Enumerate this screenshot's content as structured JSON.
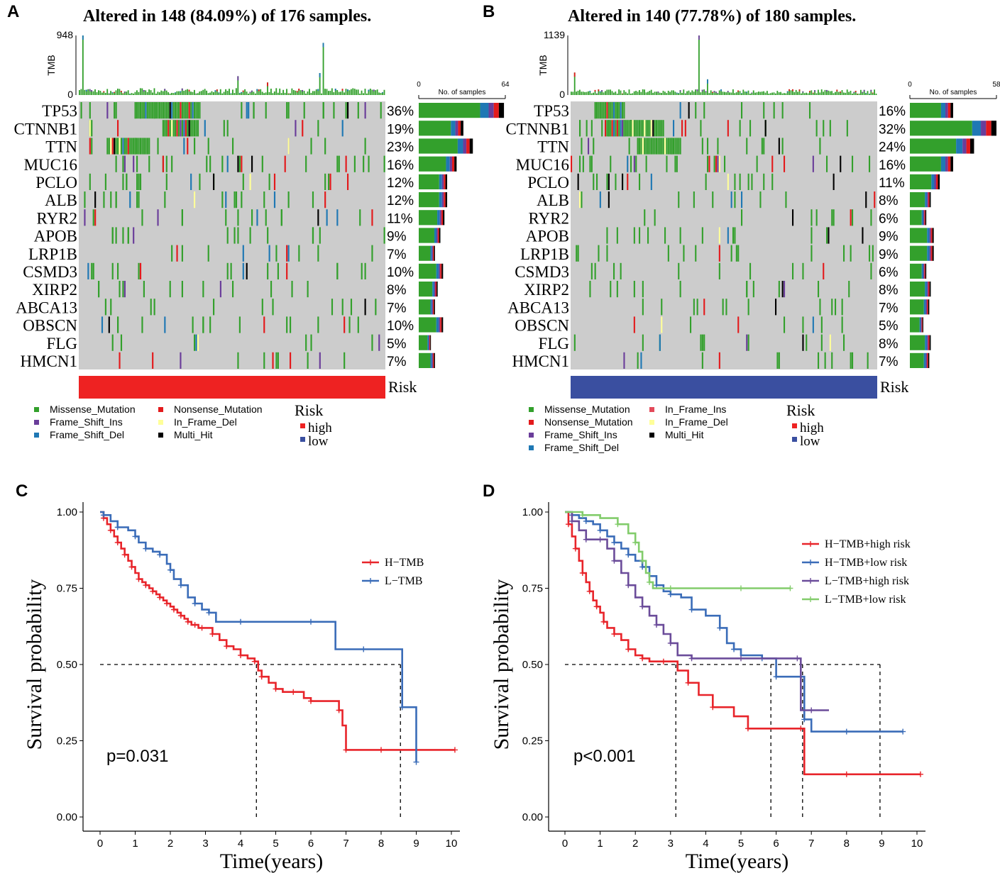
{
  "colors": {
    "Missense_Mutation": "#33a02c",
    "Nonsense_Mutation": "#e31a1c",
    "Frame_Shift_Ins": "#6a3d9a",
    "Frame_Shift_Del": "#1f78b4",
    "In_Frame_Del": "#ffff99",
    "In_Frame_Ins": "#e34a5a",
    "Multi_Hit": "#000000",
    "background": "#cccccc",
    "risk_high": "#ee2222",
    "risk_low": "#3a4fa0"
  },
  "oncoplots": [
    {
      "letter": "A",
      "title": "Altered in 148 (84.09%) of 176 samples.",
      "tmb_label": "TMB",
      "tmb_max": "948",
      "tmb_zero": "0",
      "tmb_max_value": 948,
      "n_samples": 176,
      "bar_axis_min": "0",
      "bar_axis_max": "64",
      "bar_axis_max_value": 64,
      "bar_axis_title": "No. of samples",
      "risk_label": "Risk",
      "risk_group": "high",
      "genes": [
        {
          "name": "TP53",
          "pct": "36%",
          "value": 36
        },
        {
          "name": "CTNNB1",
          "pct": "19%",
          "value": 19
        },
        {
          "name": "TTN",
          "pct": "23%",
          "value": 23
        },
        {
          "name": "MUC16",
          "pct": "16%",
          "value": 16
        },
        {
          "name": "PCLO",
          "pct": "12%",
          "value": 12
        },
        {
          "name": "ALB",
          "pct": "12%",
          "value": 12
        },
        {
          "name": "RYR2",
          "pct": "11%",
          "value": 11
        },
        {
          "name": "APOB",
          "pct": "9%",
          "value": 9
        },
        {
          "name": "LRP1B",
          "pct": "7%",
          "value": 7
        },
        {
          "name": "CSMD3",
          "pct": "10%",
          "value": 10
        },
        {
          "name": "XIRP2",
          "pct": "8%",
          "value": 8
        },
        {
          "name": "ABCA13",
          "pct": "7%",
          "value": 7
        },
        {
          "name": "OBSCN",
          "pct": "10%",
          "value": 10
        },
        {
          "name": "FLG",
          "pct": "5%",
          "value": 5
        },
        {
          "name": "HMCN1",
          "pct": "7%",
          "value": 7
        }
      ],
      "legend": [
        "Missense_Mutation",
        "Nonsense_Mutation",
        "Frame_Shift_Ins",
        "In_Frame_Del",
        "Frame_Shift_Del",
        "Multi_Hit"
      ],
      "risk_legend_title": "Risk",
      "risk_legend": [
        "high",
        "low"
      ]
    },
    {
      "letter": "B",
      "title": "Altered in 140 (77.78%) of 180 samples.",
      "tmb_label": "TMB",
      "tmb_max": "1139",
      "tmb_zero": "0",
      "tmb_max_value": 1139,
      "n_samples": 180,
      "bar_axis_min": "0",
      "bar_axis_max": "58",
      "bar_axis_max_value": 58,
      "bar_axis_title": "No. of samples",
      "risk_label": "Risk",
      "risk_group": "low",
      "genes": [
        {
          "name": "TP53",
          "pct": "16%",
          "value": 16
        },
        {
          "name": "CTNNB1",
          "pct": "32%",
          "value": 32
        },
        {
          "name": "TTN",
          "pct": "24%",
          "value": 24
        },
        {
          "name": "MUC16",
          "pct": "16%",
          "value": 16
        },
        {
          "name": "PCLO",
          "pct": "11%",
          "value": 11
        },
        {
          "name": "ALB",
          "pct": "8%",
          "value": 8
        },
        {
          "name": "RYR2",
          "pct": "6%",
          "value": 6
        },
        {
          "name": "APOB",
          "pct": "9%",
          "value": 9
        },
        {
          "name": "LRP1B",
          "pct": "9%",
          "value": 9
        },
        {
          "name": "CSMD3",
          "pct": "6%",
          "value": 6
        },
        {
          "name": "XIRP2",
          "pct": "8%",
          "value": 8
        },
        {
          "name": "ABCA13",
          "pct": "7%",
          "value": 7
        },
        {
          "name": "OBSCN",
          "pct": "5%",
          "value": 5
        },
        {
          "name": "FLG",
          "pct": "8%",
          "value": 8
        },
        {
          "name": "HMCN1",
          "pct": "7%",
          "value": 7
        }
      ],
      "legend": [
        "Missense_Mutation",
        "In_Frame_Ins",
        "Nonsense_Mutation",
        "In_Frame_Del",
        "Frame_Shift_Ins",
        "Multi_Hit",
        "Frame_Shift_Del"
      ],
      "risk_legend_title": "Risk",
      "risk_legend": [
        "high",
        "low"
      ]
    }
  ],
  "chart_data": [
    {
      "type": "line",
      "letter": "C",
      "title": "",
      "xlabel": "Time(years)",
      "ylabel": "Survival probability",
      "xlim": [
        0,
        10
      ],
      "ylim": [
        0,
        1
      ],
      "xticks": [
        "0",
        "1",
        "2",
        "3",
        "4",
        "5",
        "6",
        "7",
        "8",
        "9",
        "10"
      ],
      "yticks": [
        "0.00",
        "0.25",
        "0.50",
        "0.75",
        "1.00"
      ],
      "pvalue": "p=0.031",
      "median_line": 0.5,
      "medians": [
        4.45,
        8.55
      ],
      "series": [
        {
          "name": "H−TMB",
          "color": "#e8242a",
          "x": [
            0,
            0.1,
            0.2,
            0.3,
            0.4,
            0.5,
            0.6,
            0.7,
            0.8,
            0.9,
            1.0,
            1.1,
            1.2,
            1.3,
            1.4,
            1.5,
            1.6,
            1.7,
            1.8,
            1.9,
            2.0,
            2.1,
            2.2,
            2.3,
            2.4,
            2.5,
            2.6,
            2.7,
            2.8,
            2.9,
            3.0,
            3.2,
            3.4,
            3.6,
            3.8,
            4.0,
            4.2,
            4.4,
            4.5,
            4.6,
            4.8,
            5.0,
            5.2,
            5.5,
            5.8,
            6.0,
            6.4,
            6.8,
            6.9,
            7.0,
            7.5,
            8.0,
            9.0,
            10.1
          ],
          "y": [
            1.0,
            0.98,
            0.96,
            0.94,
            0.92,
            0.9,
            0.88,
            0.86,
            0.84,
            0.82,
            0.8,
            0.78,
            0.77,
            0.76,
            0.75,
            0.74,
            0.73,
            0.72,
            0.71,
            0.7,
            0.69,
            0.68,
            0.67,
            0.66,
            0.65,
            0.64,
            0.63,
            0.63,
            0.62,
            0.62,
            0.62,
            0.6,
            0.58,
            0.56,
            0.55,
            0.53,
            0.52,
            0.51,
            0.48,
            0.46,
            0.44,
            0.42,
            0.41,
            0.41,
            0.39,
            0.38,
            0.38,
            0.35,
            0.3,
            0.22,
            0.22,
            0.22,
            0.22,
            0.22
          ]
        },
        {
          "name": "L−TMB",
          "color": "#3a6cb8",
          "x": [
            0,
            0.1,
            0.3,
            0.5,
            0.8,
            1.0,
            1.1,
            1.3,
            1.5,
            1.7,
            1.9,
            2.0,
            2.1,
            2.3,
            2.5,
            2.7,
            2.9,
            3.1,
            3.3,
            4.0,
            5.0,
            6.0,
            6.7,
            7.5,
            8.5,
            8.6,
            8.9,
            9.0
          ],
          "y": [
            1.0,
            0.99,
            0.97,
            0.95,
            0.94,
            0.92,
            0.9,
            0.88,
            0.87,
            0.86,
            0.83,
            0.81,
            0.78,
            0.76,
            0.72,
            0.7,
            0.68,
            0.67,
            0.64,
            0.64,
            0.64,
            0.64,
            0.55,
            0.55,
            0.55,
            0.36,
            0.36,
            0.18
          ]
        }
      ]
    },
    {
      "type": "line",
      "letter": "D",
      "title": "",
      "xlabel": "Time(years)",
      "ylabel": "Survival probability",
      "xlim": [
        0,
        10
      ],
      "ylim": [
        0,
        1
      ],
      "xticks": [
        "0",
        "1",
        "2",
        "3",
        "4",
        "5",
        "6",
        "7",
        "8",
        "9",
        "10"
      ],
      "yticks": [
        "0.00",
        "0.25",
        "0.50",
        "0.75",
        "1.00"
      ],
      "pvalue": "p<0.001",
      "median_line": 0.5,
      "medians": [
        3.15,
        5.85,
        6.75,
        8.95
      ],
      "series": [
        {
          "name": "H−TMB+high risk",
          "color": "#e8242a",
          "x": [
            0,
            0.1,
            0.2,
            0.3,
            0.4,
            0.5,
            0.6,
            0.7,
            0.8,
            0.9,
            1.0,
            1.1,
            1.2,
            1.4,
            1.6,
            1.8,
            2.0,
            2.2,
            2.4,
            2.8,
            3.2,
            3.5,
            3.8,
            4.2,
            4.8,
            5.2,
            6.0,
            6.7,
            6.8,
            8.0,
            9.0,
            10.1
          ],
          "y": [
            1.0,
            0.96,
            0.92,
            0.88,
            0.84,
            0.8,
            0.77,
            0.74,
            0.71,
            0.69,
            0.67,
            0.64,
            0.62,
            0.6,
            0.58,
            0.55,
            0.53,
            0.52,
            0.51,
            0.51,
            0.48,
            0.44,
            0.4,
            0.36,
            0.33,
            0.29,
            0.29,
            0.29,
            0.14,
            0.14,
            0.14,
            0.14
          ]
        },
        {
          "name": "H−TMB+low risk",
          "color": "#3a6cb8",
          "x": [
            0,
            0.2,
            0.4,
            0.6,
            0.8,
            1.0,
            1.2,
            1.4,
            1.6,
            1.8,
            2.0,
            2.2,
            2.4,
            2.6,
            2.8,
            3.0,
            3.3,
            3.6,
            4.0,
            4.4,
            4.6,
            4.8,
            5.0,
            5.6,
            5.8,
            6.0,
            6.6,
            6.8,
            7.0,
            8.0,
            9.0,
            9.6
          ],
          "y": [
            1.0,
            0.99,
            0.98,
            0.97,
            0.96,
            0.94,
            0.92,
            0.9,
            0.88,
            0.86,
            0.84,
            0.82,
            0.79,
            0.76,
            0.74,
            0.73,
            0.72,
            0.68,
            0.66,
            0.62,
            0.57,
            0.55,
            0.53,
            0.52,
            0.52,
            0.46,
            0.46,
            0.32,
            0.28,
            0.28,
            0.28,
            0.28
          ]
        },
        {
          "name": "L−TMB+high risk",
          "color": "#6b4c9a",
          "x": [
            0,
            0.2,
            0.4,
            0.6,
            0.8,
            1.0,
            1.2,
            1.4,
            1.6,
            1.8,
            2.0,
            2.2,
            2.4,
            2.6,
            2.8,
            3.0,
            3.2,
            3.6,
            4.2,
            5.0,
            6.0,
            6.6,
            6.7,
            7.0,
            7.5
          ],
          "y": [
            1.0,
            0.97,
            0.94,
            0.91,
            0.91,
            0.91,
            0.88,
            0.84,
            0.8,
            0.76,
            0.72,
            0.69,
            0.66,
            0.63,
            0.6,
            0.57,
            0.53,
            0.52,
            0.52,
            0.52,
            0.52,
            0.52,
            0.35,
            0.35,
            0.35
          ]
        },
        {
          "name": "L−TMB+low risk",
          "color": "#82cc6b",
          "x": [
            0,
            0.5,
            1.0,
            1.5,
            1.8,
            2.0,
            2.1,
            2.2,
            2.3,
            2.4,
            2.5,
            3.0,
            4.0,
            5.0,
            6.0,
            6.4
          ],
          "y": [
            1.0,
            0.99,
            0.98,
            0.96,
            0.93,
            0.9,
            0.87,
            0.84,
            0.8,
            0.77,
            0.75,
            0.75,
            0.75,
            0.75,
            0.75,
            0.75
          ]
        }
      ]
    }
  ]
}
